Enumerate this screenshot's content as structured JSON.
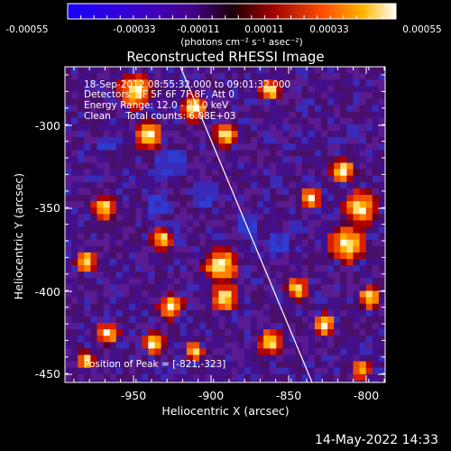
{
  "colorbar": {
    "ticks": [
      "-0.00055",
      "-0.00033",
      "-0.00011",
      "0.00011",
      "0.00033",
      "0.00055"
    ],
    "unit_label": "(photons cm⁻² s⁻¹ asec⁻²)"
  },
  "title": "Reconstructed RHESSI Image",
  "overlay": {
    "time_range": "18-Sep-2012 08:55:32.000 to 09:01:32.000",
    "detectors": "Detectors: 3F 5F 6F 7F 8F, Att 0",
    "energy": "Energy Range: 12.0 - 25.0 keV",
    "clean": "Clean     Total counts: 6.08E+03",
    "peak": "Position of Peak = [-821,-323]"
  },
  "axes": {
    "xlabel": "Heliocentric X (arcsec)",
    "ylabel": "Heliocentric Y (arcsec)",
    "x_ticks": [
      "-950",
      "-900",
      "-850",
      "-800"
    ],
    "y_ticks": [
      "-300",
      "-350",
      "-400",
      "-450"
    ]
  },
  "footer": {
    "datetime": "14-May-2022 14:33"
  },
  "colors": {
    "background": "#000000",
    "foreground": "#ffffff"
  }
}
